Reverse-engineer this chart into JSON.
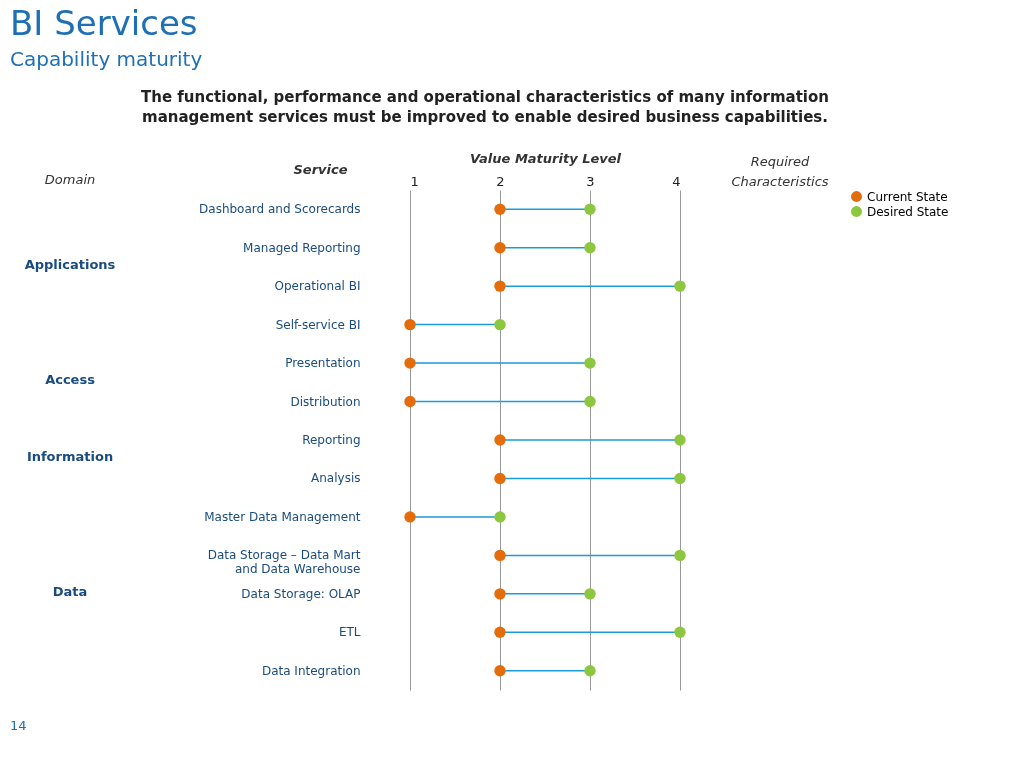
{
  "chart_data": {
    "type": "scatter",
    "orientation": "horizontal",
    "title": "BI Services",
    "subtitle": "Capability maturity",
    "xlabel": "Value Maturity Level",
    "ylabel": "Service",
    "categories": [
      "Dashboard and Scorecards",
      "Managed Reporting",
      "Operational BI",
      "Self-service BI",
      "Presentation",
      "Distribution",
      "Reporting",
      "Analysis",
      "Master Data Management",
      "Data Storage – Data Mart and Data Warehouse",
      "Data Storage: OLAP",
      "ETL",
      "Data Integration"
    ],
    "series": [
      {
        "name": "Current State",
        "color": "#e46c0a",
        "values": [
          2,
          2,
          2,
          1,
          1,
          1,
          2,
          2,
          1,
          2,
          2,
          2,
          2
        ]
      },
      {
        "name": "Desired State",
        "color": "#8dc63f",
        "values": [
          3,
          3,
          4,
          2,
          3,
          3,
          4,
          4,
          2,
          4,
          3,
          4,
          3
        ]
      }
    ],
    "xlim": [
      1,
      4
    ],
    "xticks": [
      1,
      2,
      3,
      4
    ],
    "grid": "x",
    "legend": "top right",
    "marker": "circle",
    "annotations": [
      "The functional, performance and operational characteristics of many information management services must be improved to enable desired business capabilities.",
      "Domain",
      "Required Characteristics",
      "Applications",
      "Access",
      "Information",
      "Data",
      "14"
    ]
  }
}
